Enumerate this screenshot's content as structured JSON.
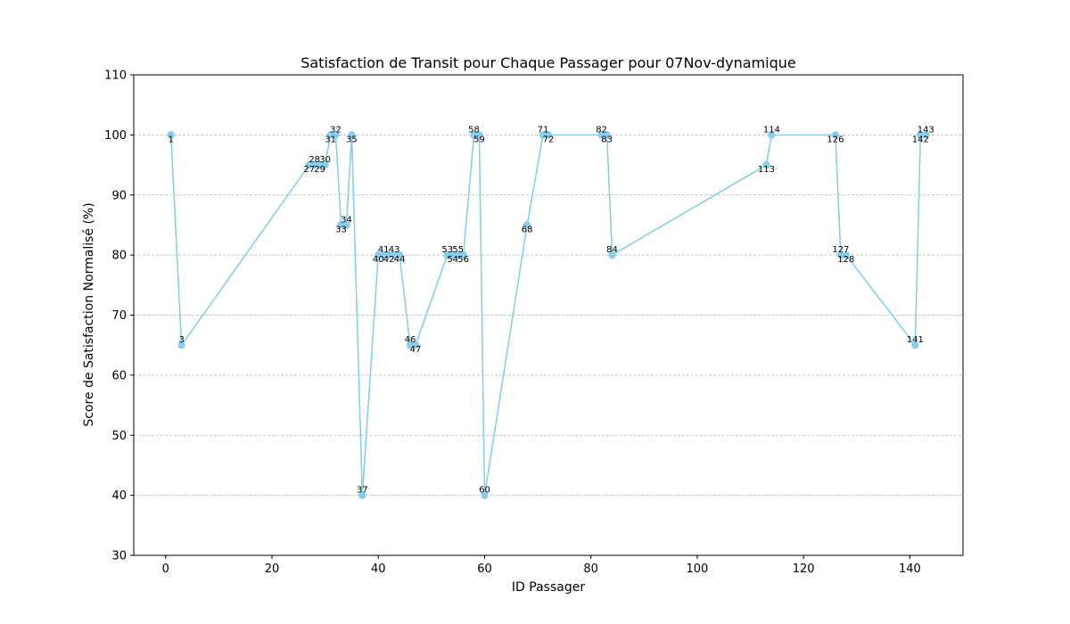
{
  "chart_data": {
    "type": "line",
    "title": "Satisfaction de Transit pour Chaque Passager pour 07Nov-dynamique",
    "xlabel": "ID Passager",
    "ylabel": "Score de Satisfaction Normalisé (%)",
    "xlim": [
      -6,
      150
    ],
    "ylim": [
      30,
      110
    ],
    "xticks": [
      0,
      20,
      40,
      60,
      80,
      100,
      120,
      140
    ],
    "yticks": [
      30,
      40,
      50,
      60,
      70,
      80,
      90,
      100,
      110
    ],
    "grid": "horizontal-dashed",
    "series_color": "#87CEEB",
    "points": [
      {
        "x": 1,
        "y": 100,
        "label": "1"
      },
      {
        "x": 3,
        "y": 65,
        "label": "3"
      },
      {
        "x": 27,
        "y": 95,
        "label": "27"
      },
      {
        "x": 28,
        "y": 95,
        "label": "28"
      },
      {
        "x": 29,
        "y": 95,
        "label": "29"
      },
      {
        "x": 30,
        "y": 95,
        "label": "30"
      },
      {
        "x": 31,
        "y": 100,
        "label": "31"
      },
      {
        "x": 32,
        "y": 100,
        "label": "32"
      },
      {
        "x": 33,
        "y": 85,
        "label": "33"
      },
      {
        "x": 34,
        "y": 85,
        "label": "34"
      },
      {
        "x": 35,
        "y": 100,
        "label": "35"
      },
      {
        "x": 37,
        "y": 40,
        "label": "37"
      },
      {
        "x": 40,
        "y": 80,
        "label": "40"
      },
      {
        "x": 41,
        "y": 80,
        "label": "41"
      },
      {
        "x": 42,
        "y": 80,
        "label": "42"
      },
      {
        "x": 43,
        "y": 80,
        "label": "43"
      },
      {
        "x": 44,
        "y": 80,
        "label": "44"
      },
      {
        "x": 46,
        "y": 65,
        "label": "46"
      },
      {
        "x": 47,
        "y": 65,
        "label": "47"
      },
      {
        "x": 53,
        "y": 80,
        "label": "53"
      },
      {
        "x": 54,
        "y": 80,
        "label": "54"
      },
      {
        "x": 55,
        "y": 80,
        "label": "55"
      },
      {
        "x": 56,
        "y": 80,
        "label": "56"
      },
      {
        "x": 58,
        "y": 100,
        "label": "58"
      },
      {
        "x": 59,
        "y": 100,
        "label": "59"
      },
      {
        "x": 60,
        "y": 40,
        "label": "60"
      },
      {
        "x": 68,
        "y": 85,
        "label": "68"
      },
      {
        "x": 71,
        "y": 100,
        "label": "71"
      },
      {
        "x": 72,
        "y": 100,
        "label": "72"
      },
      {
        "x": 82,
        "y": 100,
        "label": "82"
      },
      {
        "x": 83,
        "y": 100,
        "label": "83"
      },
      {
        "x": 84,
        "y": 80,
        "label": "84"
      },
      {
        "x": 113,
        "y": 95,
        "label": "113"
      },
      {
        "x": 114,
        "y": 100,
        "label": "114"
      },
      {
        "x": 126,
        "y": 100,
        "label": "126"
      },
      {
        "x": 127,
        "y": 80,
        "label": "127"
      },
      {
        "x": 128,
        "y": 80,
        "label": "128"
      },
      {
        "x": 141,
        "y": 65,
        "label": "141"
      },
      {
        "x": 142,
        "y": 100,
        "label": "142"
      },
      {
        "x": 143,
        "y": 100,
        "label": "143"
      }
    ]
  }
}
